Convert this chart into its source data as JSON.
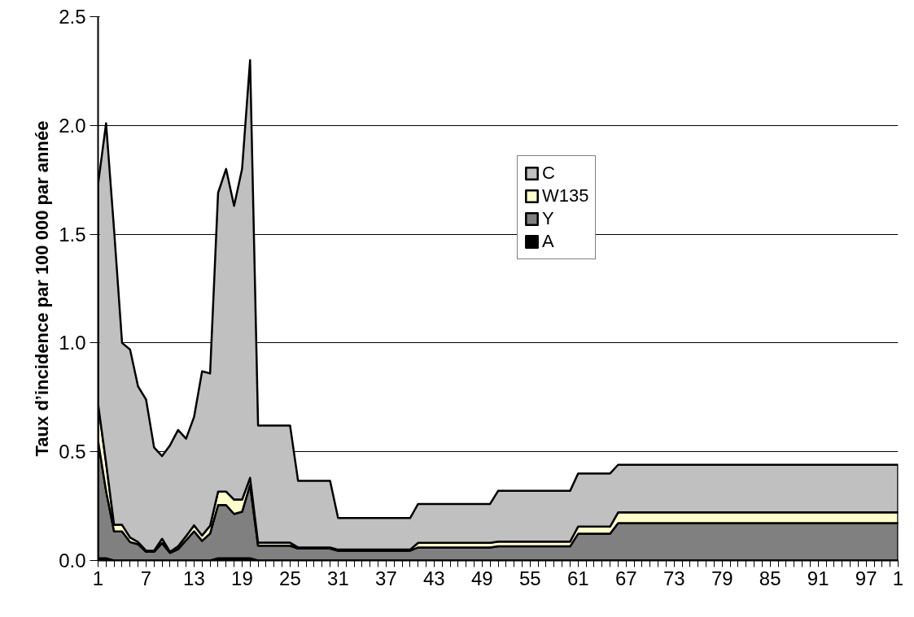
{
  "chart_data": {
    "type": "area",
    "stacked": true,
    "ylabel": "Taux d’incidence par 100 000 par année",
    "categories": [
      "1",
      null,
      null,
      null,
      null,
      null,
      "7",
      null,
      null,
      null,
      null,
      null,
      "13",
      null,
      null,
      null,
      null,
      null,
      "19",
      null,
      null,
      null,
      null,
      null,
      "25",
      null,
      null,
      null,
      null,
      null,
      "31",
      null,
      null,
      null,
      null,
      null,
      "37",
      null,
      null,
      null,
      null,
      null,
      "43",
      null,
      null,
      null,
      null,
      null,
      "49",
      null,
      null,
      null,
      null,
      null,
      "55",
      null,
      null,
      null,
      null,
      null,
      "61",
      null,
      null,
      null,
      null,
      null,
      "67",
      null,
      null,
      null,
      null,
      null,
      "73",
      null,
      null,
      null,
      null,
      null,
      "79",
      null,
      null,
      null,
      null,
      null,
      "85",
      null,
      null,
      null,
      null,
      null,
      "91",
      null,
      null,
      null,
      null,
      null,
      "97",
      null,
      null,
      null,
      "1"
    ],
    "series": [
      {
        "name": "A",
        "color": "#000000",
        "values": [
          0.01,
          0.01,
          0,
          0,
          0,
          0,
          0,
          0,
          0,
          0,
          0,
          0,
          0,
          0,
          0,
          0.01,
          0.01,
          0.01,
          0.01,
          0.01,
          0,
          0,
          0,
          0,
          0,
          0,
          0,
          0,
          0,
          0,
          0,
          0,
          0,
          0,
          0,
          0,
          0,
          0,
          0,
          0,
          0,
          0,
          0,
          0,
          0,
          0,
          0,
          0,
          0,
          0,
          0,
          0,
          0,
          0,
          0,
          0,
          0,
          0,
          0,
          0,
          0,
          0,
          0,
          0,
          0,
          0,
          0,
          0,
          0,
          0,
          0,
          0,
          0,
          0,
          0,
          0,
          0,
          0,
          0,
          0,
          0,
          0,
          0,
          0,
          0,
          0,
          0,
          0,
          0,
          0,
          0,
          0,
          0,
          0,
          0,
          0,
          0,
          0,
          0,
          0,
          0
        ]
      },
      {
        "name": "Y",
        "color": "#808080",
        "values": [
          0.54,
          0.31,
          0.134,
          0.134,
          0.085,
          0.075,
          0.04,
          0.04,
          0.08,
          0.035,
          0.052,
          0.093,
          0.134,
          0.09,
          0.124,
          0.245,
          0.245,
          0.204,
          0.214,
          0.338,
          0.068,
          0.068,
          0.068,
          0.068,
          0.068,
          0.055,
          0.055,
          0.055,
          0.055,
          0.055,
          0.045,
          0.045,
          0.045,
          0.045,
          0.045,
          0.045,
          0.045,
          0.045,
          0.045,
          0.045,
          0.06,
          0.06,
          0.06,
          0.06,
          0.06,
          0.06,
          0.06,
          0.06,
          0.06,
          0.06,
          0.065,
          0.065,
          0.065,
          0.065,
          0.065,
          0.065,
          0.065,
          0.065,
          0.065,
          0.065,
          0.123,
          0.123,
          0.123,
          0.123,
          0.123,
          0.172,
          0.172,
          0.172,
          0.172,
          0.172,
          0.172,
          0.172,
          0.172,
          0.172,
          0.172,
          0.172,
          0.172,
          0.172,
          0.172,
          0.172,
          0.172,
          0.172,
          0.172,
          0.172,
          0.172,
          0.172,
          0.172,
          0.172,
          0.172,
          0.172,
          0.172,
          0.172,
          0.172,
          0.172,
          0.172,
          0.172,
          0.172,
          0.172,
          0.172,
          0.172,
          0.172
        ]
      },
      {
        "name": "W135",
        "color": "#ffffcc",
        "values": [
          0.17,
          0.13,
          0.03,
          0.03,
          0.021,
          0.01,
          0.005,
          0.005,
          0.02,
          0.005,
          0.013,
          0.019,
          0.028,
          0.025,
          0.036,
          0.062,
          0.062,
          0.066,
          0.056,
          0.032,
          0.014,
          0.014,
          0.014,
          0.014,
          0.014,
          0.005,
          0.005,
          0.005,
          0.005,
          0.005,
          0.005,
          0.005,
          0.005,
          0.005,
          0.005,
          0.005,
          0.005,
          0.005,
          0.005,
          0.005,
          0.021,
          0.021,
          0.021,
          0.021,
          0.021,
          0.021,
          0.021,
          0.021,
          0.021,
          0.021,
          0.022,
          0.022,
          0.022,
          0.022,
          0.022,
          0.022,
          0.022,
          0.022,
          0.022,
          0.022,
          0.033,
          0.033,
          0.033,
          0.033,
          0.033,
          0.049,
          0.049,
          0.049,
          0.049,
          0.049,
          0.049,
          0.049,
          0.049,
          0.049,
          0.049,
          0.049,
          0.049,
          0.049,
          0.049,
          0.049,
          0.049,
          0.049,
          0.049,
          0.049,
          0.049,
          0.049,
          0.049,
          0.049,
          0.049,
          0.049,
          0.049,
          0.049,
          0.049,
          0.049,
          0.049,
          0.049,
          0.049,
          0.049,
          0.049,
          0.049,
          0.049
        ]
      },
      {
        "name": "C",
        "color": "#c0c0c0",
        "values": [
          1.01,
          1.56,
          1.356,
          0.836,
          0.864,
          0.715,
          0.695,
          0.475,
          0.38,
          0.49,
          0.535,
          0.448,
          0.498,
          0.755,
          0.7,
          1.373,
          1.483,
          1.35,
          1.52,
          1.92,
          0.538,
          0.538,
          0.538,
          0.538,
          0.538,
          0.306,
          0.306,
          0.306,
          0.306,
          0.306,
          0.145,
          0.145,
          0.145,
          0.145,
          0.145,
          0.145,
          0.145,
          0.145,
          0.145,
          0.145,
          0.179,
          0.179,
          0.179,
          0.179,
          0.179,
          0.179,
          0.179,
          0.179,
          0.179,
          0.179,
          0.233,
          0.233,
          0.233,
          0.233,
          0.233,
          0.233,
          0.233,
          0.233,
          0.233,
          0.233,
          0.244,
          0.244,
          0.244,
          0.244,
          0.244,
          0.219,
          0.219,
          0.219,
          0.219,
          0.219,
          0.219,
          0.219,
          0.219,
          0.219,
          0.219,
          0.219,
          0.219,
          0.219,
          0.219,
          0.219,
          0.219,
          0.219,
          0.219,
          0.219,
          0.219,
          0.219,
          0.219,
          0.219,
          0.219,
          0.219,
          0.219,
          0.219,
          0.219,
          0.219,
          0.219,
          0.219,
          0.219,
          0.219,
          0.219,
          0.219,
          0.219
        ]
      }
    ],
    "ylim": [
      0,
      2.5
    ],
    "yticks": [
      {
        "value": 0,
        "label": "0.0"
      },
      {
        "value": 0.5,
        "label": "0.5"
      },
      {
        "value": 1,
        "label": "1.0"
      },
      {
        "value": 1.5,
        "label": "1.5"
      },
      {
        "value": 2,
        "label": "2.0"
      },
      {
        "value": 2.5,
        "label": "2.5"
      }
    ],
    "grid": "y",
    "legend": "top right"
  }
}
